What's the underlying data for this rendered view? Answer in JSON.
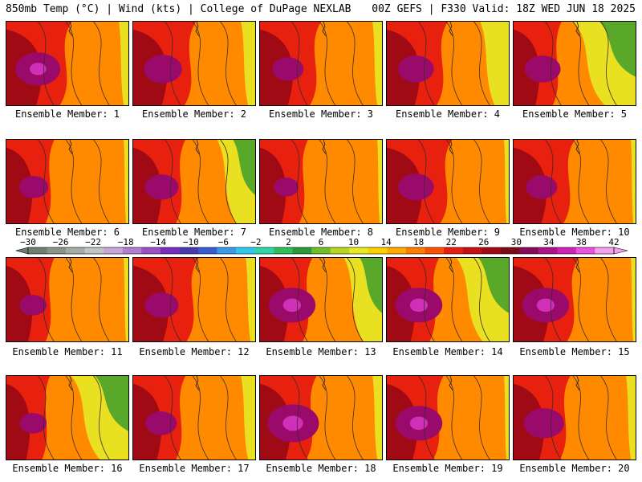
{
  "header": {
    "left": "850mb Temp (°C) | Wind (kts) | College of DuPage NEXLAB",
    "right": "00Z GEFS | F330 Valid: 18Z WED JUN 18 2025"
  },
  "colorbar": {
    "ticks": [
      "−30",
      "−26",
      "−22",
      "−18",
      "−14",
      "−10",
      "−6",
      "−2",
      "2",
      "6",
      "10",
      "14",
      "18",
      "22",
      "26",
      "30",
      "34",
      "38",
      "42"
    ],
    "colors": [
      "#6f7f6f",
      "#8a948a",
      "#a5aca5",
      "#c2c6c2",
      "#c7a6d8",
      "#b07fd0",
      "#9a52c8",
      "#7a2ec0",
      "#4a3ab0",
      "#3a5ad0",
      "#3a9ae6",
      "#2ec8ec",
      "#2ed8a8",
      "#2fbf5a",
      "#2a9a38",
      "#6fbf2a",
      "#b8d820",
      "#eaea20",
      "#ffd000",
      "#ffa800",
      "#ff7e00",
      "#ff4f00",
      "#e81e10",
      "#c80f14",
      "#a00a14",
      "#7a0a14",
      "#8a0a5a",
      "#b0128c",
      "#d022b8",
      "#ea52e0",
      "#f8a0f0"
    ]
  },
  "members": [
    {
      "label": "Ensemble Member: 1",
      "warm": 0.75,
      "cool": 0.1,
      "hot": 0.65
    },
    {
      "label": "Ensemble Member: 2",
      "warm": 0.72,
      "cool": 0.15,
      "hot": 0.5
    },
    {
      "label": "Ensemble Member: 3",
      "warm": 0.7,
      "cool": 0.1,
      "hot": 0.35
    },
    {
      "label": "Ensemble Member: 4",
      "warm": 0.7,
      "cool": 0.3,
      "hot": 0.45
    },
    {
      "label": "Ensemble Member: 5",
      "warm": 0.55,
      "cool": 0.65,
      "hot": 0.45
    },
    {
      "label": "Ensemble Member: 6",
      "warm": 0.55,
      "cool": 0.05,
      "hot": 0.3
    },
    {
      "label": "Ensemble Member: 7",
      "warm": 0.6,
      "cool": 0.4,
      "hot": 0.4
    },
    {
      "label": "Ensemble Member: 8",
      "warm": 0.55,
      "cool": 0.05,
      "hot": 0.2
    },
    {
      "label": "Ensemble Member: 9",
      "warm": 0.75,
      "cool": 0.05,
      "hot": 0.45
    },
    {
      "label": "Ensemble Member: 10",
      "warm": 0.7,
      "cool": 0.05,
      "hot": 0.35
    },
    {
      "label": "Ensemble Member: 11",
      "warm": 0.55,
      "cool": 0.05,
      "hot": 0.25
    },
    {
      "label": "Ensemble Member: 12",
      "warm": 0.75,
      "cool": 0.1,
      "hot": 0.4
    },
    {
      "label": "Ensemble Member: 13",
      "warm": 0.6,
      "cool": 0.4,
      "hot": 0.7
    },
    {
      "label": "Ensemble Member: 14",
      "warm": 0.6,
      "cool": 0.55,
      "hot": 0.7
    },
    {
      "label": "Ensemble Member: 15",
      "warm": 0.75,
      "cool": 0.05,
      "hot": 0.7
    },
    {
      "label": "Ensemble Member: 16",
      "warm": 0.5,
      "cool": 0.6,
      "hot": 0.25
    },
    {
      "label": "Ensemble Member: 17",
      "warm": 0.6,
      "cool": 0.15,
      "hot": 0.35
    },
    {
      "label": "Ensemble Member: 18",
      "warm": 0.65,
      "cool": 0.1,
      "hot": 0.8
    },
    {
      "label": "Ensemble Member: 19",
      "warm": 0.65,
      "cool": 0.05,
      "hot": 0.7
    },
    {
      "label": "Ensemble Member: 20",
      "warm": 0.65,
      "cool": 0.1,
      "hot": 0.55
    }
  ]
}
